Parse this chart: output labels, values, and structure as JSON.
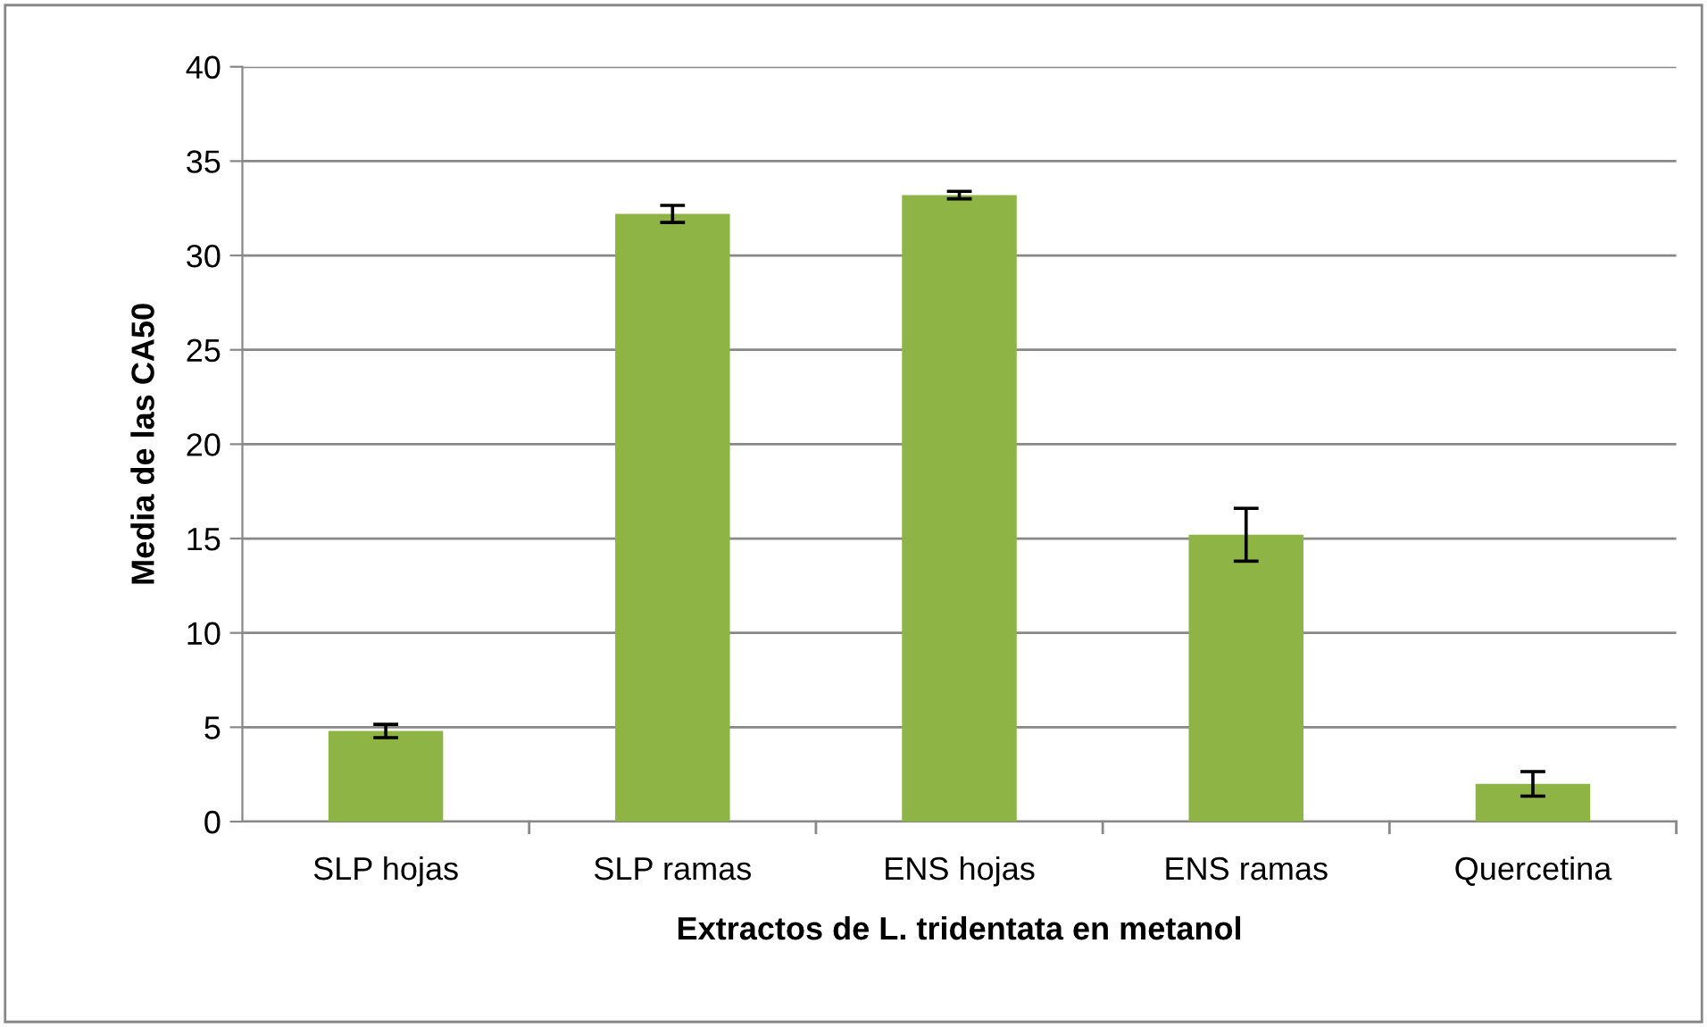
{
  "chart_data": {
    "type": "bar",
    "xlabel": "Extractos de L. tridentata en metanol",
    "ylabel": "Media de las CA50",
    "categories": [
      "SLP hojas",
      "SLP ramas",
      "ENS hojas",
      "ENS ramas",
      "Quercetina"
    ],
    "values": [
      4.8,
      32.2,
      33.2,
      15.2,
      2.0
    ],
    "errors": [
      0.35,
      0.45,
      0.2,
      1.4,
      0.65
    ],
    "color": "#8db444",
    "ylim": [
      0,
      40
    ],
    "yticks": [
      0,
      5,
      10,
      15,
      20,
      25,
      30,
      35,
      40
    ],
    "grid": "y",
    "legend": false
  }
}
